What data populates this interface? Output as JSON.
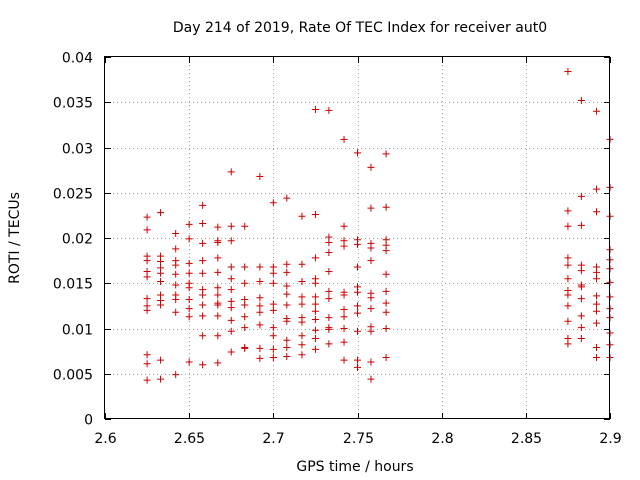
{
  "chart_data": {
    "type": "scatter",
    "title": "Day 214 of 2019, Rate Of TEC Index for receiver aut0",
    "xlabel": "GPS time / hours",
    "ylabel": "ROTI / TECUs",
    "xlim": [
      2.6,
      2.9
    ],
    "ylim": [
      0,
      0.04
    ],
    "xticks": [
      2.6,
      2.65,
      2.7,
      2.75,
      2.8,
      2.85,
      2.9
    ],
    "xtick_labels": [
      "2.6",
      "2.65",
      "2.7",
      "2.75",
      "2.8",
      "2.85",
      "2.9"
    ],
    "yticks": [
      0,
      0.005,
      0.01,
      0.015,
      0.02,
      0.025,
      0.03,
      0.035,
      0.04
    ],
    "ytick_labels": [
      "0",
      "0.005",
      "0.01",
      "0.015",
      "0.02",
      "0.025",
      "0.03",
      "0.035",
      "0.04"
    ],
    "grid": true,
    "marker": "+",
    "color": "#cc0000",
    "series": [
      {
        "name": "ROTI",
        "points": [
          [
            2.625,
            0.0223
          ],
          [
            2.625,
            0.0209
          ],
          [
            2.625,
            0.018
          ],
          [
            2.625,
            0.0175
          ],
          [
            2.625,
            0.0163
          ],
          [
            2.625,
            0.0157
          ],
          [
            2.625,
            0.0133
          ],
          [
            2.625,
            0.0125
          ],
          [
            2.625,
            0.012
          ],
          [
            2.625,
            0.0071
          ],
          [
            2.625,
            0.0061
          ],
          [
            2.625,
            0.0043
          ],
          [
            2.633,
            0.0228
          ],
          [
            2.633,
            0.018
          ],
          [
            2.633,
            0.0174
          ],
          [
            2.633,
            0.0167
          ],
          [
            2.633,
            0.0161
          ],
          [
            2.633,
            0.0152
          ],
          [
            2.633,
            0.0137
          ],
          [
            2.633,
            0.0131
          ],
          [
            2.633,
            0.0126
          ],
          [
            2.633,
            0.0065
          ],
          [
            2.633,
            0.0044
          ],
          [
            2.642,
            0.0205
          ],
          [
            2.642,
            0.0188
          ],
          [
            2.642,
            0.0175
          ],
          [
            2.642,
            0.017
          ],
          [
            2.642,
            0.016
          ],
          [
            2.642,
            0.0148
          ],
          [
            2.642,
            0.0137
          ],
          [
            2.642,
            0.0132
          ],
          [
            2.642,
            0.0118
          ],
          [
            2.642,
            0.0049
          ],
          [
            2.65,
            0.0215
          ],
          [
            2.65,
            0.0199
          ],
          [
            2.65,
            0.0172
          ],
          [
            2.65,
            0.0161
          ],
          [
            2.65,
            0.015
          ],
          [
            2.65,
            0.0145
          ],
          [
            2.65,
            0.0132
          ],
          [
            2.65,
            0.0122
          ],
          [
            2.65,
            0.0113
          ],
          [
            2.65,
            0.0063
          ],
          [
            2.658,
            0.0236
          ],
          [
            2.658,
            0.0216
          ],
          [
            2.658,
            0.0194
          ],
          [
            2.658,
            0.0175
          ],
          [
            2.658,
            0.0161
          ],
          [
            2.658,
            0.0143
          ],
          [
            2.658,
            0.0137
          ],
          [
            2.658,
            0.0126
          ],
          [
            2.658,
            0.0114
          ],
          [
            2.658,
            0.0092
          ],
          [
            2.658,
            0.006
          ],
          [
            2.667,
            0.0212
          ],
          [
            2.667,
            0.0197
          ],
          [
            2.667,
            0.0195
          ],
          [
            2.667,
            0.0178
          ],
          [
            2.667,
            0.0162
          ],
          [
            2.667,
            0.0145
          ],
          [
            2.667,
            0.0137
          ],
          [
            2.667,
            0.0128
          ],
          [
            2.667,
            0.0126
          ],
          [
            2.667,
            0.0114
          ],
          [
            2.667,
            0.0092
          ],
          [
            2.667,
            0.0062
          ],
          [
            2.675,
            0.0273
          ],
          [
            2.675,
            0.0213
          ],
          [
            2.675,
            0.0197
          ],
          [
            2.675,
            0.0168
          ],
          [
            2.675,
            0.0155
          ],
          [
            2.675,
            0.0143
          ],
          [
            2.675,
            0.013
          ],
          [
            2.675,
            0.0123
          ],
          [
            2.675,
            0.0109
          ],
          [
            2.675,
            0.0097
          ],
          [
            2.675,
            0.0074
          ],
          [
            2.683,
            0.0213
          ],
          [
            2.683,
            0.0168
          ],
          [
            2.683,
            0.015
          ],
          [
            2.683,
            0.0132
          ],
          [
            2.683,
            0.0126
          ],
          [
            2.683,
            0.0113
          ],
          [
            2.683,
            0.0101
          ],
          [
            2.683,
            0.0079
          ],
          [
            2.683,
            0.0078
          ],
          [
            2.692,
            0.0268
          ],
          [
            2.692,
            0.0168
          ],
          [
            2.692,
            0.0152
          ],
          [
            2.692,
            0.0134
          ],
          [
            2.692,
            0.0125
          ],
          [
            2.692,
            0.0118
          ],
          [
            2.692,
            0.0104
          ],
          [
            2.692,
            0.0078
          ],
          [
            2.692,
            0.0067
          ],
          [
            2.7,
            0.0239
          ],
          [
            2.7,
            0.0168
          ],
          [
            2.7,
            0.0161
          ],
          [
            2.7,
            0.015
          ],
          [
            2.7,
            0.0127
          ],
          [
            2.7,
            0.012
          ],
          [
            2.7,
            0.0101
          ],
          [
            2.7,
            0.0092
          ],
          [
            2.7,
            0.0077
          ],
          [
            2.7,
            0.0068
          ],
          [
            2.708,
            0.0244
          ],
          [
            2.708,
            0.0171
          ],
          [
            2.708,
            0.0162
          ],
          [
            2.708,
            0.0147
          ],
          [
            2.708,
            0.0138
          ],
          [
            2.708,
            0.0126
          ],
          [
            2.708,
            0.0111
          ],
          [
            2.708,
            0.0108
          ],
          [
            2.708,
            0.0087
          ],
          [
            2.708,
            0.0079
          ],
          [
            2.708,
            0.0069
          ],
          [
            2.717,
            0.0224
          ],
          [
            2.717,
            0.0171
          ],
          [
            2.717,
            0.0152
          ],
          [
            2.717,
            0.0135
          ],
          [
            2.717,
            0.0127
          ],
          [
            2.717,
            0.0112
          ],
          [
            2.717,
            0.0107
          ],
          [
            2.717,
            0.0092
          ],
          [
            2.717,
            0.0082
          ],
          [
            2.717,
            0.0071
          ],
          [
            2.725,
            0.0342
          ],
          [
            2.725,
            0.0226
          ],
          [
            2.725,
            0.0178
          ],
          [
            2.725,
            0.0155
          ],
          [
            2.725,
            0.015
          ],
          [
            2.725,
            0.0135
          ],
          [
            2.725,
            0.0127
          ],
          [
            2.725,
            0.0119
          ],
          [
            2.725,
            0.011
          ],
          [
            2.725,
            0.0098
          ],
          [
            2.725,
            0.0089
          ],
          [
            2.725,
            0.0077
          ],
          [
            2.733,
            0.0341
          ],
          [
            2.733,
            0.0201
          ],
          [
            2.733,
            0.0195
          ],
          [
            2.733,
            0.0184
          ],
          [
            2.733,
            0.0163
          ],
          [
            2.733,
            0.0141
          ],
          [
            2.733,
            0.0133
          ],
          [
            2.733,
            0.0112
          ],
          [
            2.733,
            0.0101
          ],
          [
            2.733,
            0.0099
          ],
          [
            2.733,
            0.0083
          ],
          [
            2.742,
            0.0309
          ],
          [
            2.742,
            0.0213
          ],
          [
            2.742,
            0.0197
          ],
          [
            2.742,
            0.0191
          ],
          [
            2.742,
            0.014
          ],
          [
            2.742,
            0.0137
          ],
          [
            2.742,
            0.0121
          ],
          [
            2.742,
            0.0113
          ],
          [
            2.742,
            0.01
          ],
          [
            2.742,
            0.0085
          ],
          [
            2.742,
            0.0065
          ],
          [
            2.75,
            0.0294
          ],
          [
            2.75,
            0.0198
          ],
          [
            2.75,
            0.0193
          ],
          [
            2.75,
            0.0168
          ],
          [
            2.75,
            0.0146
          ],
          [
            2.75,
            0.014
          ],
          [
            2.75,
            0.0125
          ],
          [
            2.75,
            0.0117
          ],
          [
            2.75,
            0.0097
          ],
          [
            2.75,
            0.0065
          ],
          [
            2.75,
            0.0057
          ],
          [
            2.758,
            0.0278
          ],
          [
            2.758,
            0.0233
          ],
          [
            2.758,
            0.0194
          ],
          [
            2.758,
            0.0189
          ],
          [
            2.758,
            0.0175
          ],
          [
            2.758,
            0.0139
          ],
          [
            2.758,
            0.0134
          ],
          [
            2.758,
            0.0122
          ],
          [
            2.758,
            0.0102
          ],
          [
            2.758,
            0.0097
          ],
          [
            2.758,
            0.0063
          ],
          [
            2.758,
            0.0044
          ],
          [
            2.767,
            0.0293
          ],
          [
            2.767,
            0.0234
          ],
          [
            2.767,
            0.0198
          ],
          [
            2.767,
            0.0192
          ],
          [
            2.767,
            0.0186
          ],
          [
            2.767,
            0.016
          ],
          [
            2.767,
            0.0141
          ],
          [
            2.767,
            0.0128
          ],
          [
            2.767,
            0.0118
          ],
          [
            2.767,
            0.01
          ],
          [
            2.767,
            0.0068
          ],
          [
            2.875,
            0.0384
          ],
          [
            2.875,
            0.023
          ],
          [
            2.875,
            0.0213
          ],
          [
            2.875,
            0.0178
          ],
          [
            2.875,
            0.017
          ],
          [
            2.875,
            0.0155
          ],
          [
            2.875,
            0.0142
          ],
          [
            2.875,
            0.0137
          ],
          [
            2.875,
            0.0125
          ],
          [
            2.875,
            0.0108
          ],
          [
            2.875,
            0.0089
          ],
          [
            2.875,
            0.0083
          ],
          [
            2.883,
            0.0352
          ],
          [
            2.883,
            0.0246
          ],
          [
            2.883,
            0.0214
          ],
          [
            2.883,
            0.017
          ],
          [
            2.883,
            0.0164
          ],
          [
            2.883,
            0.0148
          ],
          [
            2.883,
            0.0146
          ],
          [
            2.883,
            0.0133
          ],
          [
            2.883,
            0.0114
          ],
          [
            2.883,
            0.0101
          ],
          [
            2.883,
            0.0089
          ],
          [
            2.892,
            0.034
          ],
          [
            2.892,
            0.0254
          ],
          [
            2.892,
            0.0229
          ],
          [
            2.892,
            0.0168
          ],
          [
            2.892,
            0.0162
          ],
          [
            2.892,
            0.0155
          ],
          [
            2.892,
            0.0136
          ],
          [
            2.892,
            0.0127
          ],
          [
            2.892,
            0.0119
          ],
          [
            2.892,
            0.0106
          ],
          [
            2.892,
            0.0079
          ],
          [
            2.892,
            0.0068
          ],
          [
            2.9,
            0.0309
          ],
          [
            2.9,
            0.0256
          ],
          [
            2.9,
            0.0224
          ],
          [
            2.9,
            0.0187
          ],
          [
            2.9,
            0.0176
          ],
          [
            2.9,
            0.0166
          ],
          [
            2.9,
            0.0151
          ],
          [
            2.9,
            0.0135
          ],
          [
            2.9,
            0.0122
          ],
          [
            2.9,
            0.0112
          ],
          [
            2.9,
            0.0095
          ],
          [
            2.9,
            0.0082
          ],
          [
            2.9,
            0.0068
          ]
        ]
      }
    ]
  }
}
